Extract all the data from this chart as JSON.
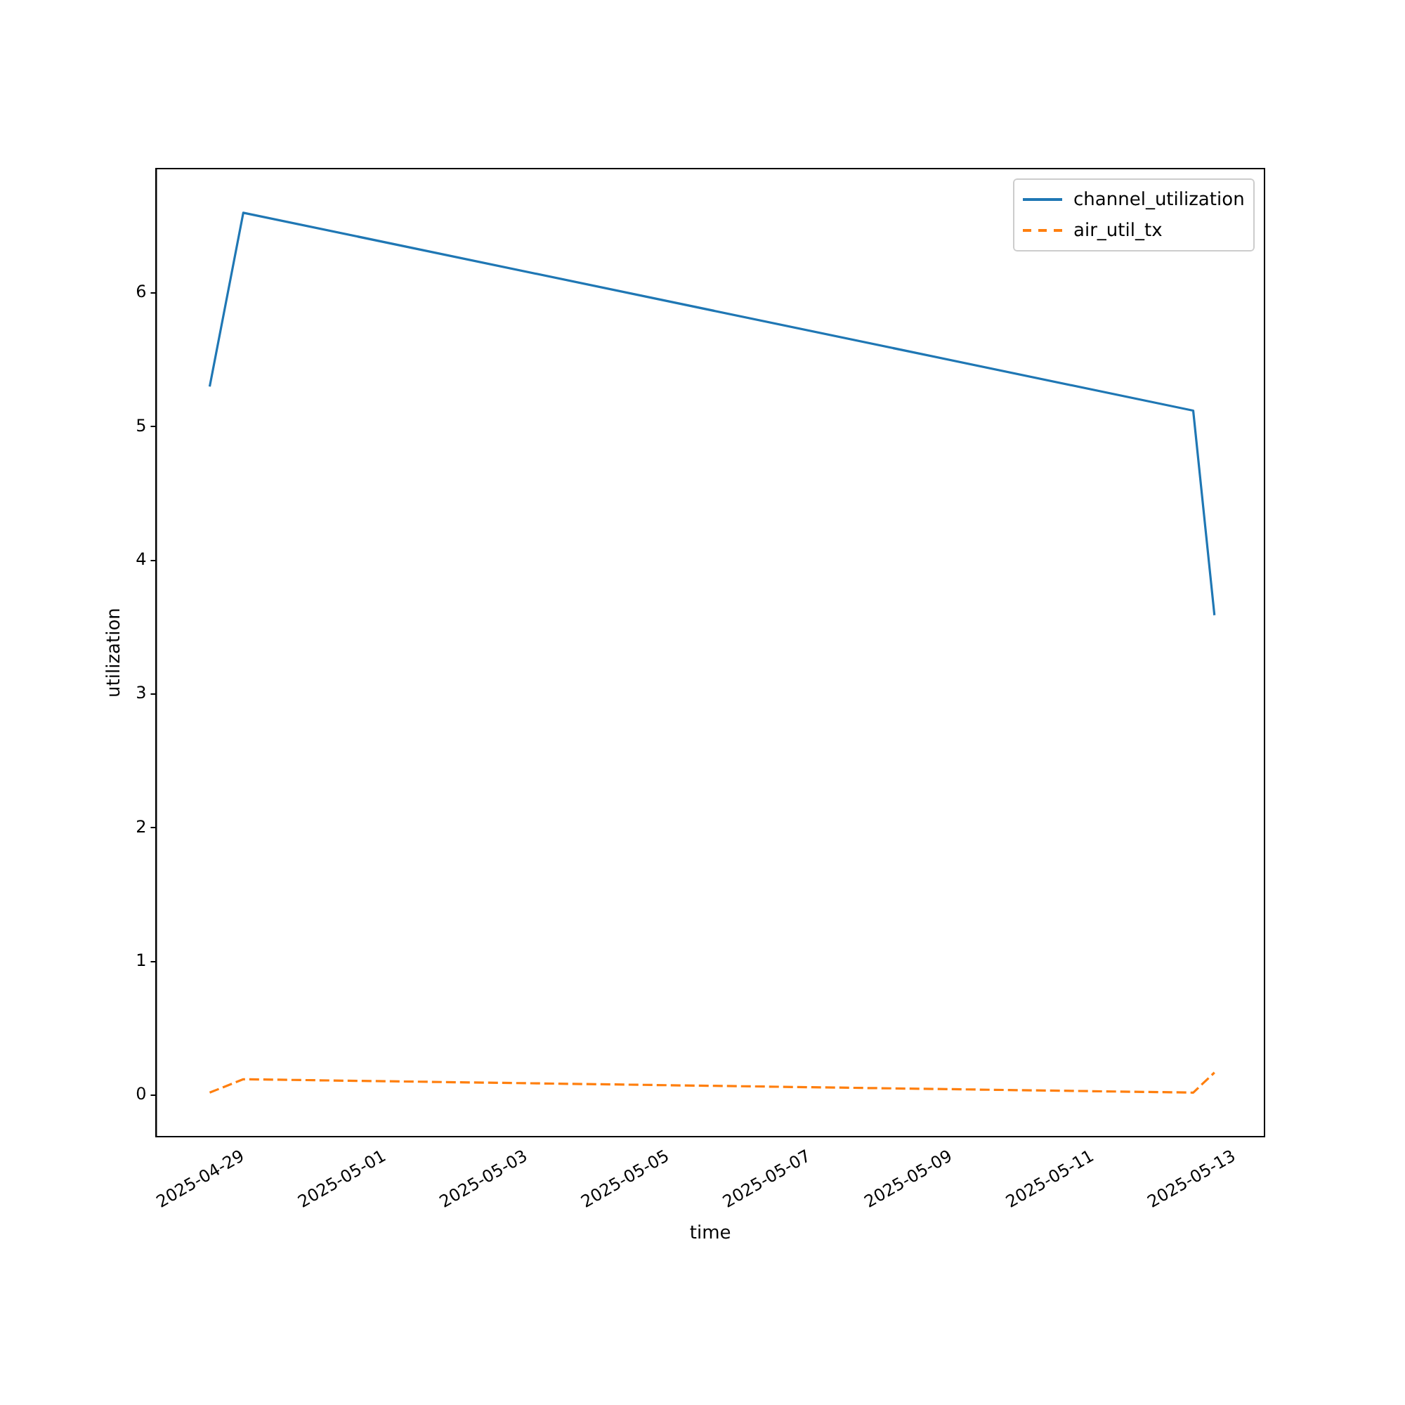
{
  "chart_data": {
    "type": "line",
    "xlabel": "time",
    "ylabel": "utilization",
    "x": [
      "2025-04-28T12:36",
      "2025-04-29T00:00",
      "2025-05-12T10:00",
      "2025-05-12T17:12"
    ],
    "series": [
      {
        "name": "channel_utilization",
        "color": "#1f77b4",
        "values": [
          5.3,
          6.6,
          5.12,
          3.59
        ],
        "line_style": "solid"
      },
      {
        "name": "air_util_tx",
        "color": "#ff7f0e",
        "values": [
          0.02,
          0.12,
          0.02,
          0.17
        ],
        "line_style": "dashed"
      }
    ],
    "xlim": [
      "2025-04-27T18:30",
      "2025-05-13T10:10"
    ],
    "xticks": [
      "2025-04-29",
      "2025-05-01",
      "2025-05-03",
      "2025-05-05",
      "2025-05-07",
      "2025-05-09",
      "2025-05-11",
      "2025-05-13"
    ],
    "ylim": [
      -0.31,
      6.93
    ],
    "yticks": [
      0,
      1,
      2,
      3,
      4,
      5,
      6
    ],
    "grid": false,
    "legend": "top right",
    "marker": "none"
  }
}
